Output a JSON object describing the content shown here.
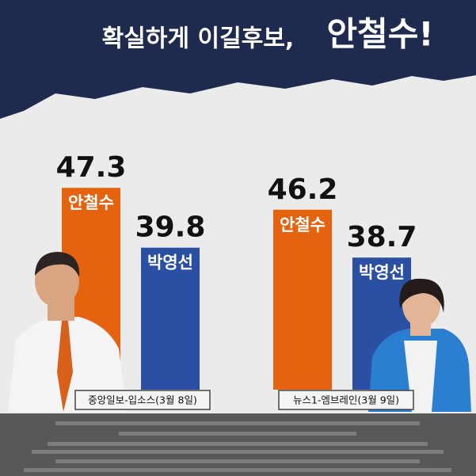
{
  "header": {
    "title": "확실하게 이길후보,",
    "highlight": "안철수!"
  },
  "chart_data": [
    {
      "type": "bar",
      "caption": "중앙일보-입소스(3월 8일)",
      "categories": [
        "안철수",
        "박영선"
      ],
      "values": [
        47.3,
        39.8
      ],
      "colors": [
        "#e5620f",
        "#2b4fa3"
      ],
      "ylim": [
        22,
        50
      ]
    },
    {
      "type": "bar",
      "caption": "뉴스1-엠브레인(3월 9일)",
      "categories": [
        "안철수",
        "박영선"
      ],
      "values": [
        46.2,
        38.7
      ],
      "colors": [
        "#e5620f",
        "#2b4fa3"
      ],
      "ylim": [
        18,
        53
      ]
    }
  ]
}
